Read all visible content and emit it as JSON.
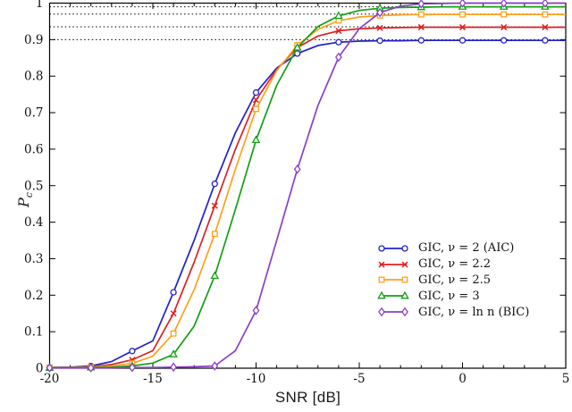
{
  "chart_data": {
    "type": "line",
    "title": "",
    "xlabel": "SNR [dB]",
    "ylabel": {
      "base": "P",
      "sub": "c"
    },
    "xlim": [
      -20,
      5
    ],
    "ylim": [
      0,
      1
    ],
    "grid": false,
    "legend_position": "lower right",
    "x_major_ticks": [
      -20,
      -15,
      -10,
      -5,
      0,
      5
    ],
    "x_major_tick_labels": [
      "-20",
      "-15",
      "-10",
      "-5",
      "0",
      "5"
    ],
    "x_minor_tick_step": 1,
    "y_ticks": [
      0,
      0.1,
      0.2,
      0.3,
      0.4,
      0.5,
      0.6,
      0.7,
      0.8,
      0.9,
      1
    ],
    "y_tick_labels": [
      "0",
      "0.1",
      "0.2",
      "0.3",
      "0.4",
      "0.5",
      "0.6",
      "0.7",
      "0.8",
      "0.9",
      "1"
    ],
    "dotted_reference_levels": [
      0.9,
      0.935,
      0.97,
      0.99
    ],
    "x": [
      -20,
      -19,
      -18,
      -17,
      -16,
      -15,
      -14,
      -13,
      -12,
      -11,
      -10,
      -9,
      -8,
      -7,
      -6,
      -5,
      -4,
      -3,
      -2,
      -1,
      0,
      1,
      2,
      3,
      4,
      5
    ],
    "marker_every": 2,
    "series": [
      {
        "name": "GIC, ν = 2 (AIC)",
        "color": "#2222cd",
        "marker": "circle",
        "values": [
          0.002,
          0.003,
          0.006,
          0.018,
          0.047,
          0.075,
          0.208,
          0.35,
          0.505,
          0.645,
          0.755,
          0.822,
          0.862,
          0.884,
          0.893,
          0.896,
          0.897,
          0.897,
          0.898,
          0.898,
          0.898,
          0.898,
          0.898,
          0.898,
          0.898,
          0.898
        ]
      },
      {
        "name": "GIC, ν = 2.2",
        "color": "#e02020",
        "marker": "x",
        "values": [
          0.002,
          0.002,
          0.004,
          0.01,
          0.023,
          0.048,
          0.15,
          0.29,
          0.445,
          0.6,
          0.735,
          0.818,
          0.878,
          0.91,
          0.924,
          0.93,
          0.932,
          0.933,
          0.934,
          0.934,
          0.934,
          0.934,
          0.934,
          0.934,
          0.934,
          0.934
        ]
      },
      {
        "name": "GIC, ν = 2.5",
        "color": "#ffa018",
        "marker": "square",
        "values": [
          0.001,
          0.002,
          0.003,
          0.006,
          0.013,
          0.033,
          0.095,
          0.215,
          0.368,
          0.545,
          0.71,
          0.815,
          0.885,
          0.928,
          0.952,
          0.962,
          0.966,
          0.968,
          0.969,
          0.969,
          0.969,
          0.969,
          0.969,
          0.969,
          0.969,
          0.969
        ]
      },
      {
        "name": "GIC, ν = 3",
        "color": "#12a012",
        "marker": "triangle",
        "values": [
          0.001,
          0.001,
          0.002,
          0.003,
          0.006,
          0.014,
          0.038,
          0.115,
          0.253,
          0.435,
          0.625,
          0.775,
          0.878,
          0.936,
          0.965,
          0.98,
          0.986,
          0.988,
          0.989,
          0.99,
          0.99,
          0.99,
          0.99,
          0.99,
          0.99,
          0.99
        ]
      },
      {
        "name": "GIC, ν = ln n (BIC)",
        "color": "#8a3fc6",
        "marker": "diamond",
        "values": [
          0.001,
          0.001,
          0.001,
          0.001,
          0.002,
          0.002,
          0.003,
          0.004,
          0.006,
          0.048,
          0.158,
          0.35,
          0.545,
          0.72,
          0.852,
          0.93,
          0.974,
          0.992,
          0.998,
          0.999,
          1.0,
          1.0,
          1.0,
          1.0,
          1.0,
          1.0
        ]
      }
    ]
  }
}
